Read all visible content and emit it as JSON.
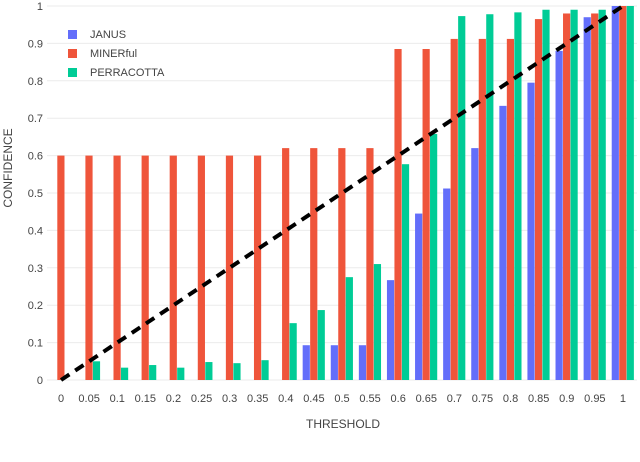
{
  "chart_data": {
    "type": "bar",
    "title": "",
    "xlabel": "THRESHOLD",
    "ylabel": "CONFIDENCE",
    "categories": [
      "0",
      "0.05",
      "0.1",
      "0.15",
      "0.2",
      "0.25",
      "0.3",
      "0.35",
      "0.4",
      "0.45",
      "0.5",
      "0.55",
      "0.6",
      "0.65",
      "0.7",
      "0.75",
      "0.8",
      "0.85",
      "0.9",
      "0.95",
      "1"
    ],
    "ylim": [
      0,
      1
    ],
    "yticks": [
      "0",
      "0.1",
      "0.2",
      "0.3",
      "0.4",
      "0.5",
      "0.6",
      "0.7",
      "0.8",
      "0.9",
      "1"
    ],
    "grid": true,
    "legend_position": "top-left",
    "series": [
      {
        "name": "JANUS",
        "color": "#636efa",
        "values": [
          0,
          0,
          0,
          0,
          0,
          0,
          0,
          0,
          0,
          0.093,
          0.093,
          0.093,
          0.267,
          0.445,
          0.512,
          0.62,
          0.733,
          0.795,
          0.88,
          0.97,
          1.0
        ]
      },
      {
        "name": "MINERful",
        "color": "#ef553b",
        "values": [
          0.6,
          0.6,
          0.6,
          0.6,
          0.6,
          0.6,
          0.6,
          0.6,
          0.62,
          0.62,
          0.62,
          0.62,
          0.885,
          0.885,
          0.912,
          0.912,
          0.912,
          0.965,
          0.98,
          0.98,
          1.0
        ]
      },
      {
        "name": "PERRACOTTA",
        "color": "#00cc96",
        "values": [
          0,
          0.05,
          0.033,
          0.04,
          0.033,
          0.048,
          0.045,
          0.053,
          0.152,
          0.187,
          0.275,
          0.31,
          0.577,
          0.658,
          0.973,
          0.978,
          0.983,
          0.99,
          0.99,
          0.99,
          1.0
        ]
      }
    ],
    "reference_line": {
      "from": [
        0,
        0
      ],
      "to": [
        1,
        1
      ],
      "style": "dashed",
      "color": "#000000"
    }
  }
}
